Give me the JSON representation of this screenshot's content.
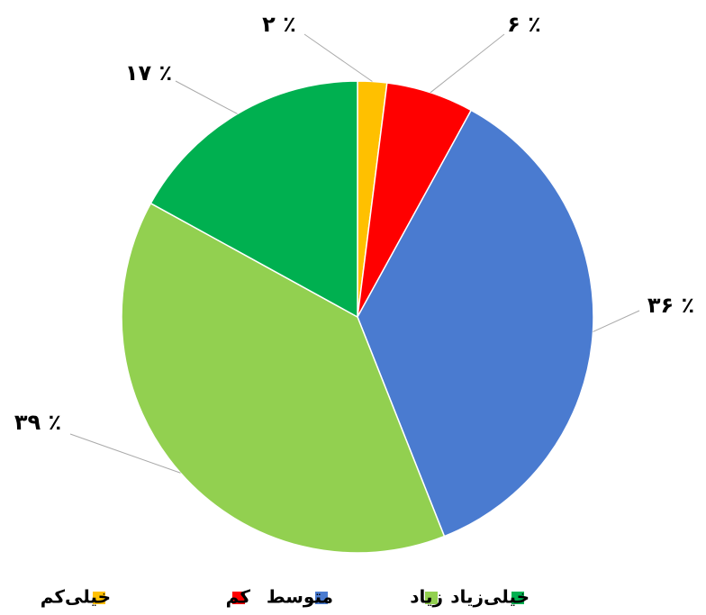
{
  "chart_data": {
    "type": "pie",
    "categories": [
      "خیلی‌کم",
      "کم",
      "متوسط",
      "زیاد",
      "خیلی‌زیاد"
    ],
    "values": [
      2,
      6,
      36,
      39,
      17
    ],
    "value_labels": [
      "۲ ٪",
      "۶ ٪",
      "۳۶ ٪",
      "۳۹ ٪",
      "۱۷ ٪"
    ],
    "colors": [
      "#ffc000",
      "#ff0000",
      "#4a7bd0",
      "#92d050",
      "#00b050"
    ]
  }
}
